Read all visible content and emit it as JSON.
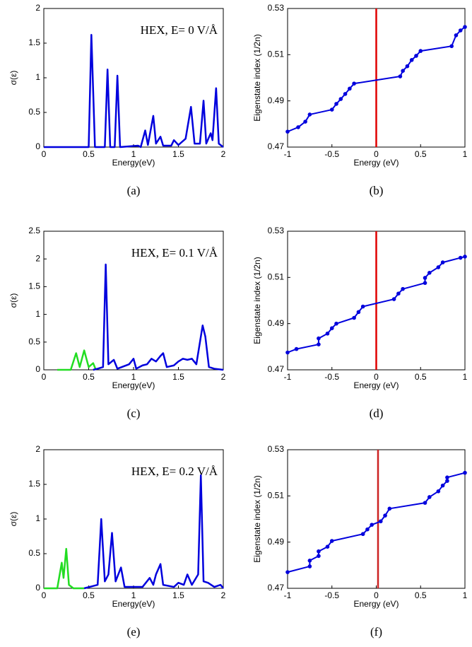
{
  "chart_data": [
    {
      "type": "line",
      "caption": "(a)",
      "annotation": "HEX, E= 0 V/Å",
      "xlabel": "Energy(eV)",
      "ylabel": "σ(ε)",
      "xlim": [
        0,
        2
      ],
      "ylim": [
        0,
        2
      ],
      "xticks": [
        0,
        0.5,
        1,
        1.5,
        2
      ],
      "yticks": [
        0,
        0.5,
        1,
        1.5,
        2
      ],
      "markers": false,
      "series": [
        {
          "color": "#0000dd",
          "x": [
            0,
            0.5,
            0.53,
            0.57,
            0.68,
            0.71,
            0.74,
            0.79,
            0.82,
            0.85,
            1.05,
            1.08,
            1.13,
            1.16,
            1.22,
            1.25,
            1.3,
            1.33,
            1.42,
            1.45,
            1.5,
            1.58,
            1.64,
            1.68,
            1.74,
            1.78,
            1.81,
            1.86,
            1.88,
            1.92,
            1.95,
            2
          ],
          "values": [
            0,
            0,
            1.62,
            0,
            0,
            1.12,
            0,
            0,
            1.03,
            0,
            0.02,
            0,
            0.24,
            0.03,
            0.45,
            0.05,
            0.15,
            0.02,
            0.02,
            0.1,
            0.03,
            0.12,
            0.58,
            0.05,
            0.05,
            0.67,
            0.05,
            0.2,
            0.1,
            0.85,
            0.05,
            0
          ]
        }
      ]
    },
    {
      "type": "line",
      "caption": "(b)",
      "xlabel": "Energy (eV)",
      "ylabel": "Eigenstate index (1/2n)",
      "xlim": [
        -1,
        1
      ],
      "ylim": [
        0.47,
        0.53
      ],
      "xticks": [
        -1,
        -0.5,
        0,
        0.5,
        1
      ],
      "yticks": [
        0.47,
        0.49,
        0.51,
        0.53
      ],
      "markers": true,
      "vline": {
        "x": 0,
        "color": "#e00000"
      },
      "series": [
        {
          "color": "#0000dd",
          "x": [
            -1,
            -0.88,
            -0.8,
            -0.75,
            -0.5,
            -0.45,
            -0.4,
            -0.35,
            -0.3,
            -0.25,
            0.27,
            0.3,
            0.35,
            0.4,
            0.45,
            0.5,
            0.85,
            0.9,
            0.95,
            1
          ],
          "values": [
            0.4767,
            0.4786,
            0.481,
            0.4841,
            0.4862,
            0.4887,
            0.4908,
            0.493,
            0.4953,
            0.4975,
            0.5006,
            0.503,
            0.505,
            0.5077,
            0.5095,
            0.5116,
            0.5137,
            0.5184,
            0.5205,
            0.522
          ]
        }
      ]
    },
    {
      "type": "line",
      "caption": "(c)",
      "annotation": "HEX, E= 0.1 V/Å",
      "xlabel": "Energy(eV)",
      "ylabel": "σ(ε)",
      "xlim": [
        0,
        2
      ],
      "ylim": [
        0,
        2.5
      ],
      "xticks": [
        0,
        0.5,
        1,
        1.5,
        2
      ],
      "yticks": [
        0,
        0.5,
        1,
        1.5,
        2,
        2.5
      ],
      "markers": false,
      "series": [
        {
          "color": "#22dd22",
          "x": [
            0.15,
            0.3,
            0.36,
            0.4,
            0.45,
            0.5,
            0.55,
            0.58
          ],
          "values": [
            0,
            0,
            0.3,
            0.05,
            0.35,
            0.05,
            0.12,
            0
          ]
        },
        {
          "color": "#0000dd",
          "x": [
            0.55,
            0.6,
            0.66,
            0.69,
            0.72,
            0.78,
            0.82,
            0.95,
            1.0,
            1.03,
            1.1,
            1.15,
            1.2,
            1.25,
            1.3,
            1.33,
            1.37,
            1.45,
            1.5,
            1.55,
            1.6,
            1.65,
            1.7,
            1.74,
            1.77,
            1.8,
            1.84,
            1.9,
            2
          ],
          "values": [
            0,
            0.02,
            0.05,
            1.9,
            0.1,
            0.18,
            0.02,
            0.1,
            0.2,
            0.02,
            0.08,
            0.1,
            0.2,
            0.15,
            0.25,
            0.3,
            0.05,
            0.08,
            0.15,
            0.2,
            0.18,
            0.2,
            0.1,
            0.5,
            0.8,
            0.6,
            0.05,
            0.02,
            0
          ]
        }
      ]
    },
    {
      "type": "line",
      "caption": "(d)",
      "xlabel": "Energy (eV)",
      "ylabel": "Eigenstate index (1/2n)",
      "xlim": [
        -1,
        1
      ],
      "ylim": [
        0.47,
        0.53
      ],
      "xticks": [
        -1,
        -0.5,
        0,
        0.5,
        1
      ],
      "yticks": [
        0.47,
        0.49,
        0.51,
        0.53
      ],
      "markers": true,
      "vline": {
        "x": 0,
        "color": "#e00000"
      },
      "series": [
        {
          "color": "#0000dd",
          "x": [
            -1,
            -0.9,
            -0.65,
            -0.65,
            -0.55,
            -0.5,
            -0.45,
            -0.25,
            -0.2,
            -0.15,
            0.2,
            0.25,
            0.3,
            0.55,
            0.55,
            0.6,
            0.7,
            0.75,
            0.95,
            1
          ],
          "values": [
            0.4775,
            0.479,
            0.481,
            0.4836,
            0.4857,
            0.488,
            0.49,
            0.4925,
            0.495,
            0.4974,
            0.5006,
            0.503,
            0.505,
            0.5076,
            0.5098,
            0.512,
            0.5144,
            0.5165,
            0.5185,
            0.519
          ]
        }
      ]
    },
    {
      "type": "line",
      "caption": "(e)",
      "annotation": "HEX, E= 0.2 V/Å",
      "xlabel": "Energy(eV)",
      "ylabel": "σ(ε)",
      "xlim": [
        0,
        2
      ],
      "ylim": [
        0,
        2
      ],
      "xticks": [
        0,
        0.5,
        1,
        1.5,
        2
      ],
      "yticks": [
        0,
        0.5,
        1,
        1.5,
        2
      ],
      "markers": false,
      "series": [
        {
          "color": "#22dd22",
          "x": [
            0,
            0.15,
            0.2,
            0.22,
            0.25,
            0.28,
            0.33,
            0.45
          ],
          "values": [
            0,
            0,
            0.37,
            0.15,
            0.57,
            0.05,
            0,
            0
          ]
        },
        {
          "color": "#0000dd",
          "x": [
            0.45,
            0.6,
            0.64,
            0.68,
            0.72,
            0.76,
            0.8,
            0.86,
            0.9,
            1.1,
            1.18,
            1.22,
            1.25,
            1.3,
            1.33,
            1.45,
            1.5,
            1.56,
            1.6,
            1.65,
            1.72,
            1.75,
            1.78,
            1.83,
            1.9,
            1.97,
            2
          ],
          "values": [
            0,
            0.05,
            1.0,
            0.1,
            0.2,
            0.8,
            0.1,
            0.3,
            0.02,
            0.02,
            0.15,
            0.05,
            0.2,
            0.35,
            0.05,
            0.02,
            0.08,
            0.05,
            0.2,
            0.05,
            0.2,
            1.63,
            0.1,
            0.08,
            0.02,
            0.05,
            0
          ]
        }
      ]
    },
    {
      "type": "line",
      "caption": "(f)",
      "xlabel": "Energy (eV)",
      "ylabel": "Eigenstate index (1/2n)",
      "xlim": [
        -1,
        1
      ],
      "ylim": [
        0.47,
        0.53
      ],
      "xticks": [
        -1,
        -0.5,
        0,
        0.5,
        1
      ],
      "yticks": [
        0.47,
        0.49,
        0.51,
        0.53
      ],
      "markers": true,
      "vline": {
        "x": 0.02,
        "color": "#cc2222"
      },
      "series": [
        {
          "color": "#0000dd",
          "x": [
            -1,
            -0.75,
            -0.75,
            -0.65,
            -0.65,
            -0.55,
            -0.5,
            -0.15,
            -0.1,
            -0.05,
            0.05,
            0.1,
            0.15,
            0.55,
            0.6,
            0.7,
            0.75,
            0.8,
            0.8,
            1
          ],
          "values": [
            0.477,
            0.4795,
            0.482,
            0.484,
            0.486,
            0.488,
            0.4905,
            0.4935,
            0.4955,
            0.4975,
            0.499,
            0.5015,
            0.5045,
            0.507,
            0.5095,
            0.512,
            0.5145,
            0.5165,
            0.518,
            0.52
          ]
        }
      ]
    }
  ]
}
